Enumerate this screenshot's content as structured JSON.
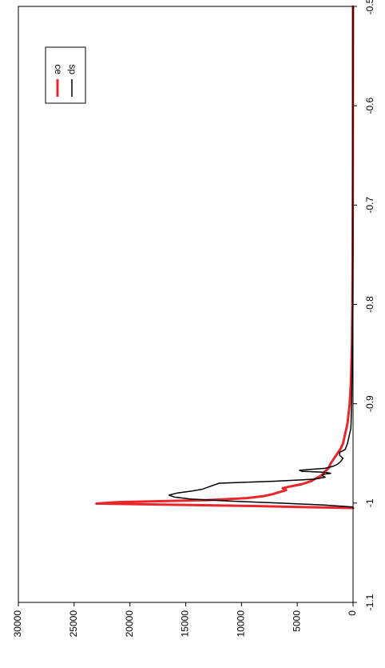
{
  "chart_data": {
    "type": "line",
    "orientation": "rotated-90-ccw",
    "xlim": [
      -1.1,
      -0.5
    ],
    "ylim": [
      0,
      30000
    ],
    "x_ticks": [
      "-1.1",
      "-1",
      "-0.9",
      "-0.8",
      "-0.7",
      "-0.6",
      "-0.5"
    ],
    "y_ticks": [
      "0",
      "5000",
      "10000",
      "15000",
      "20000",
      "25000",
      "30000"
    ],
    "grid": false,
    "legend_position": "top-right",
    "series": [
      {
        "name": "ce",
        "color": "#e8262b",
        "x": [
          -1.005,
          -1.003,
          -1.0015,
          -1.0005,
          -0.999,
          -0.997,
          -0.995,
          -0.993,
          -0.991,
          -0.989,
          -0.987,
          -0.985,
          -0.983,
          -0.981,
          -0.978,
          -0.975,
          -0.972,
          -0.968,
          -0.965,
          -0.96,
          -0.955,
          -0.95,
          -0.945,
          -0.94,
          -0.93,
          -0.92,
          -0.91,
          -0.9,
          -0.88,
          -0.86,
          -0.84,
          -0.8,
          -0.75,
          -0.7,
          -0.65,
          -0.6,
          -0.55,
          -0.5
        ],
        "values": [
          0,
          9000,
          17000,
          23000,
          21000,
          13000,
          9500,
          8000,
          7200,
          6600,
          6000,
          6300,
          5500,
          4600,
          3800,
          3300,
          2800,
          2500,
          2200,
          2000,
          1700,
          1400,
          1100,
          900,
          700,
          500,
          400,
          300,
          200,
          150,
          100,
          60,
          40,
          30,
          20,
          15,
          10,
          5
        ]
      },
      {
        "name": "sp",
        "color": "#000000",
        "x": [
          -1.004,
          -1.002,
          -1.0,
          -0.998,
          -0.996,
          -0.994,
          -0.992,
          -0.99,
          -0.988,
          -0.986,
          -0.984,
          -0.982,
          -0.98,
          -0.978,
          -0.976,
          -0.974,
          -0.972,
          -0.971,
          -0.97,
          -0.969,
          -0.968,
          -0.967,
          -0.966,
          -0.965,
          -0.963,
          -0.961,
          -0.958,
          -0.955,
          -0.952,
          -0.949,
          -0.946,
          -0.943,
          -0.94,
          -0.935,
          -0.93,
          -0.925,
          -0.92,
          -0.91,
          -0.9,
          -0.88,
          -0.86,
          -0.84,
          -0.8,
          -0.75,
          -0.7,
          -0.65,
          -0.6,
          -0.55,
          -0.5
        ],
        "values": [
          0,
          2500,
          6500,
          11000,
          14500,
          16000,
          16500,
          15800,
          14500,
          13500,
          13000,
          12500,
          12000,
          7000,
          3500,
          2500,
          2800,
          2600,
          2000,
          2500,
          4600,
          4800,
          3700,
          2500,
          1800,
          1400,
          1100,
          900,
          1200,
          1200,
          700,
          600,
          500,
          400,
          300,
          200,
          180,
          150,
          120,
          100,
          80,
          60,
          40,
          30,
          20,
          15,
          10,
          5,
          3
        ]
      }
    ]
  }
}
